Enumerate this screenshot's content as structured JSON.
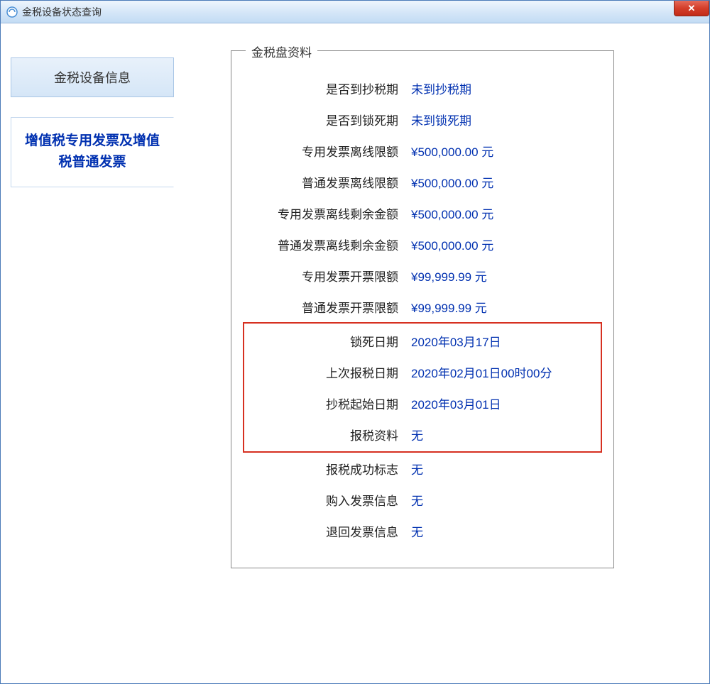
{
  "window": {
    "title": "金税设备状态查询"
  },
  "sidebar": {
    "header": "金税设备信息",
    "tab": "增值税专用发票及增值税普通发票"
  },
  "fieldset": {
    "legend": "金税盘资料"
  },
  "rows": [
    {
      "label": "是否到抄税期",
      "value": "未到抄税期"
    },
    {
      "label": "是否到锁死期",
      "value": "未到锁死期"
    },
    {
      "label": "专用发票离线限额",
      "value": "¥500,000.00 元"
    },
    {
      "label": "普通发票离线限额",
      "value": "¥500,000.00 元"
    },
    {
      "label": "专用发票离线剩余金额",
      "value": "¥500,000.00 元"
    },
    {
      "label": "普通发票离线剩余金额",
      "value": "¥500,000.00 元"
    },
    {
      "label": "专用发票开票限额",
      "value": "¥99,999.99 元"
    },
    {
      "label": "普通发票开票限额",
      "value": "¥99,999.99 元"
    }
  ],
  "highlighted_rows": [
    {
      "label": "锁死日期",
      "value": "2020年03月17日"
    },
    {
      "label": "上次报税日期",
      "value": "2020年02月01日00时00分"
    },
    {
      "label": "抄税起始日期",
      "value": "2020年03月01日"
    },
    {
      "label": "报税资料",
      "value": "无"
    }
  ],
  "rows_after": [
    {
      "label": "报税成功标志",
      "value": "无"
    },
    {
      "label": "购入发票信息",
      "value": "无"
    },
    {
      "label": "退回发票信息",
      "value": "无"
    }
  ],
  "colors": {
    "value_color": "#0030b0",
    "highlight_border": "#d63020",
    "titlebar_gradient_top": "#eef5fd",
    "titlebar_gradient_bottom": "#c3dcf4",
    "sidebar_header_bg": "#d5e6f7",
    "close_btn_bg": "#d43e2a"
  }
}
